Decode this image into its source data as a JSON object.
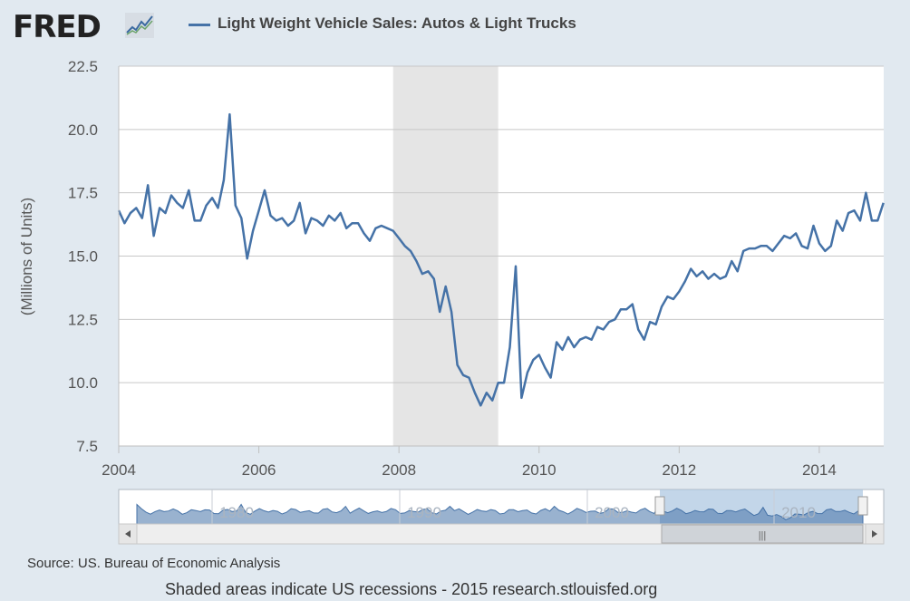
{
  "header": {
    "logo_text": "FRED",
    "legend_label": "Light Weight Vehicle Sales: Autos & Light Trucks"
  },
  "colors": {
    "series": "#4572a7",
    "recession": "#e5e5e5",
    "background": "#e1e9f0",
    "plot": "#ffffff"
  },
  "chart_data": {
    "type": "line",
    "title": "",
    "xlabel": "",
    "ylabel": "(Millions of Units)",
    "ylim": [
      7.5,
      22.5
    ],
    "xlim": [
      2004.0,
      2014.92
    ],
    "yticks": [
      "7.5",
      "10.0",
      "12.5",
      "15.0",
      "17.5",
      "20.0",
      "22.5"
    ],
    "xticks": [
      "2004",
      "2006",
      "2008",
      "2010",
      "2012",
      "2014"
    ],
    "grid": true,
    "legend": "top",
    "recessions": [
      {
        "start": "2007-12",
        "end": "2009-06"
      }
    ],
    "x": [
      "2004-01",
      "2004-02",
      "2004-03",
      "2004-04",
      "2004-05",
      "2004-06",
      "2004-07",
      "2004-08",
      "2004-09",
      "2004-10",
      "2004-11",
      "2004-12",
      "2005-01",
      "2005-02",
      "2005-03",
      "2005-04",
      "2005-05",
      "2005-06",
      "2005-07",
      "2005-08",
      "2005-09",
      "2005-10",
      "2005-11",
      "2005-12",
      "2006-01",
      "2006-02",
      "2006-03",
      "2006-04",
      "2006-05",
      "2006-06",
      "2006-07",
      "2006-08",
      "2006-09",
      "2006-10",
      "2006-11",
      "2006-12",
      "2007-01",
      "2007-02",
      "2007-03",
      "2007-04",
      "2007-05",
      "2007-06",
      "2007-07",
      "2007-08",
      "2007-09",
      "2007-10",
      "2007-11",
      "2007-12",
      "2008-01",
      "2008-02",
      "2008-03",
      "2008-04",
      "2008-05",
      "2008-06",
      "2008-07",
      "2008-08",
      "2008-09",
      "2008-10",
      "2008-11",
      "2008-12",
      "2009-01",
      "2009-02",
      "2009-03",
      "2009-04",
      "2009-05",
      "2009-06",
      "2009-07",
      "2009-08",
      "2009-09",
      "2009-10",
      "2009-11",
      "2009-12",
      "2010-01",
      "2010-02",
      "2010-03",
      "2010-04",
      "2010-05",
      "2010-06",
      "2010-07",
      "2010-08",
      "2010-09",
      "2010-10",
      "2010-11",
      "2010-12",
      "2011-01",
      "2011-02",
      "2011-03",
      "2011-04",
      "2011-05",
      "2011-06",
      "2011-07",
      "2011-08",
      "2011-09",
      "2011-10",
      "2011-11",
      "2011-12",
      "2012-01",
      "2012-02",
      "2012-03",
      "2012-04",
      "2012-05",
      "2012-06",
      "2012-07",
      "2012-08",
      "2012-09",
      "2012-10",
      "2012-11",
      "2012-12",
      "2013-01",
      "2013-02",
      "2013-03",
      "2013-04",
      "2013-05",
      "2013-06",
      "2013-07",
      "2013-08",
      "2013-09",
      "2013-10",
      "2013-11",
      "2013-12",
      "2014-01",
      "2014-02",
      "2014-03",
      "2014-04",
      "2014-05",
      "2014-06",
      "2014-07",
      "2014-08",
      "2014-09",
      "2014-10",
      "2014-11",
      "2014-12"
    ],
    "series": [
      {
        "name": "Light Weight Vehicle Sales: Autos & Light Trucks",
        "values": [
          16.8,
          16.3,
          16.7,
          16.9,
          16.5,
          17.8,
          15.8,
          16.9,
          16.7,
          17.4,
          17.1,
          16.9,
          17.6,
          16.4,
          16.4,
          17.0,
          17.3,
          16.9,
          18.0,
          20.6,
          17.0,
          16.5,
          14.9,
          16.0,
          16.8,
          17.6,
          16.6,
          16.4,
          16.5,
          16.2,
          16.4,
          17.1,
          15.9,
          16.5,
          16.4,
          16.2,
          16.6,
          16.4,
          16.7,
          16.1,
          16.3,
          16.3,
          15.9,
          15.6,
          16.1,
          16.2,
          16.1,
          16.0,
          15.7,
          15.4,
          15.2,
          14.8,
          14.3,
          14.4,
          14.1,
          12.8,
          13.8,
          12.8,
          10.7,
          10.3,
          10.2,
          9.6,
          9.1,
          9.6,
          9.3,
          10.0,
          10.0,
          11.4,
          14.6,
          9.4,
          10.4,
          10.9,
          11.1,
          10.6,
          10.2,
          11.6,
          11.3,
          11.8,
          11.4,
          11.7,
          11.8,
          11.7,
          12.2,
          12.1,
          12.4,
          12.5,
          12.9,
          12.9,
          13.1,
          12.1,
          11.7,
          12.4,
          12.3,
          13.0,
          13.4,
          13.3,
          13.6,
          14.0,
          14.5,
          14.2,
          14.4,
          14.1,
          14.3,
          14.1,
          14.2,
          14.8,
          14.4,
          15.2,
          15.3,
          15.3,
          15.4,
          15.4,
          15.2,
          15.5,
          15.8,
          15.7,
          15.9,
          15.4,
          15.3,
          16.2,
          15.5,
          15.2,
          15.4,
          16.4,
          16.0,
          16.7,
          16.8,
          16.4,
          17.5,
          16.4,
          16.4,
          17.1
        ]
      }
    ]
  },
  "navigator": {
    "labels": [
      "1980",
      "1990",
      "2000",
      "2010"
    ]
  },
  "footer": {
    "source": "Source: US. Bureau of Economic Analysis",
    "note": "Shaded areas indicate US recessions - 2015 research.stlouisfed.org"
  }
}
